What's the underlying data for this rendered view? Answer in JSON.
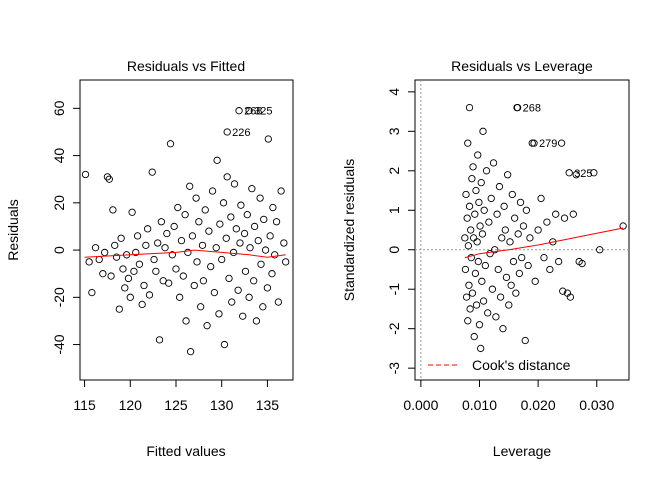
{
  "chart_data": [
    {
      "type": "scatter",
      "title": "Residuals vs Fitted",
      "xlabel": "Fitted values",
      "ylabel": "Residuals",
      "xlim": [
        114.5,
        137.8
      ],
      "ylim": [
        -55,
        72
      ],
      "xticks": [
        115,
        120,
        125,
        130,
        135
      ],
      "yticks": [
        -40,
        -20,
        0,
        20,
        40,
        60
      ],
      "annotations": [
        {
          "label": "268",
          "x": 131.9,
          "y": 59
        },
        {
          "label": "325",
          "x": 133.0,
          "y": 59
        },
        {
          "label": "226",
          "x": 130.6,
          "y": 50
        }
      ],
      "series": [
        {
          "points": [
            [
              115.1,
              32
            ],
            [
              115.5,
              -5
            ],
            [
              115.8,
              -18
            ],
            [
              116.2,
              1
            ],
            [
              116.6,
              -4
            ],
            [
              117.0,
              -10
            ],
            [
              117.2,
              -1
            ],
            [
              117.5,
              31
            ],
            [
              117.7,
              30
            ],
            [
              117.9,
              -11
            ],
            [
              118.1,
              17
            ],
            [
              118.3,
              2
            ],
            [
              118.5,
              -3
            ],
            [
              118.8,
              -25
            ],
            [
              119.0,
              5
            ],
            [
              119.2,
              -8
            ],
            [
              119.4,
              -16
            ],
            [
              119.6,
              -2
            ],
            [
              119.8,
              -12
            ],
            [
              120.0,
              -20
            ],
            [
              120.2,
              16
            ],
            [
              120.4,
              -9
            ],
            [
              120.6,
              -1
            ],
            [
              120.8,
              6
            ],
            [
              121.0,
              -6
            ],
            [
              121.3,
              -23
            ],
            [
              121.5,
              -15
            ],
            [
              121.7,
              2
            ],
            [
              121.9,
              9
            ],
            [
              122.1,
              -19
            ],
            [
              122.4,
              33
            ],
            [
              122.6,
              -4
            ],
            [
              122.8,
              -9
            ],
            [
              123.0,
              3
            ],
            [
              123.2,
              -38
            ],
            [
              123.4,
              12
            ],
            [
              123.6,
              -13
            ],
            [
              123.8,
              1
            ],
            [
              124.0,
              7
            ],
            [
              124.2,
              -14
            ],
            [
              124.4,
              45
            ],
            [
              124.6,
              -2
            ],
            [
              124.8,
              10
            ],
            [
              125.0,
              -8
            ],
            [
              125.2,
              18
            ],
            [
              125.4,
              -20
            ],
            [
              125.6,
              4
            ],
            [
              125.8,
              -11
            ],
            [
              126.0,
              15
            ],
            [
              126.1,
              -30
            ],
            [
              126.3,
              -1
            ],
            [
              126.5,
              27
            ],
            [
              126.6,
              -43
            ],
            [
              126.8,
              6
            ],
            [
              127.0,
              -15
            ],
            [
              127.2,
              22
            ],
            [
              127.3,
              -5
            ],
            [
              127.5,
              12
            ],
            [
              127.7,
              -24
            ],
            [
              127.9,
              2
            ],
            [
              128.0,
              -13
            ],
            [
              128.2,
              17
            ],
            [
              128.4,
              -32
            ],
            [
              128.6,
              8
            ],
            [
              128.8,
              -7
            ],
            [
              129.0,
              25
            ],
            [
              129.2,
              -18
            ],
            [
              129.4,
              1
            ],
            [
              129.5,
              38
            ],
            [
              129.7,
              -27
            ],
            [
              129.8,
              11
            ],
            [
              130.0,
              -4
            ],
            [
              130.2,
              20
            ],
            [
              130.3,
              -40
            ],
            [
              130.5,
              5
            ],
            [
              130.6,
              31
            ],
            [
              130.8,
              -12
            ],
            [
              131.0,
              14
            ],
            [
              131.1,
              -22
            ],
            [
              131.3,
              -1
            ],
            [
              131.4,
              28
            ],
            [
              131.6,
              9
            ],
            [
              131.8,
              -17
            ],
            [
              132.0,
              3
            ],
            [
              132.1,
              19
            ],
            [
              132.3,
              -28
            ],
            [
              132.5,
              7
            ],
            [
              132.6,
              -9
            ],
            [
              132.8,
              15
            ],
            [
              133.0,
              -20
            ],
            [
              133.1,
              1
            ],
            [
              133.3,
              26
            ],
            [
              133.5,
              -13
            ],
            [
              133.6,
              10
            ],
            [
              133.8,
              -30
            ],
            [
              134.0,
              4
            ],
            [
              134.2,
              22
            ],
            [
              134.3,
              -6
            ],
            [
              134.5,
              -24
            ],
            [
              134.6,
              13
            ],
            [
              134.8,
              0
            ],
            [
              135.0,
              -16
            ],
            [
              135.1,
              47
            ],
            [
              135.3,
              6
            ],
            [
              135.5,
              -10
            ],
            [
              135.6,
              18
            ],
            [
              135.8,
              -2
            ],
            [
              136.0,
              12
            ],
            [
              136.2,
              -22
            ],
            [
              136.5,
              25
            ],
            [
              136.8,
              3
            ],
            [
              137.0,
              -5
            ]
          ]
        }
      ],
      "smoother": [
        [
          115,
          -3
        ],
        [
          120,
          -2
        ],
        [
          125,
          -1
        ],
        [
          127,
          0
        ],
        [
          130,
          -1
        ],
        [
          133,
          -2
        ],
        [
          135,
          -3
        ],
        [
          137,
          -2
        ]
      ]
    },
    {
      "type": "scatter",
      "title": "Residuals vs Leverage",
      "xlabel": "Leverage",
      "ylabel": "Standardized residuals",
      "xlim": [
        -0.001,
        0.0355
      ],
      "ylim": [
        -3.3,
        4.3
      ],
      "xticks": [
        "0.000",
        "0.010",
        "0.020",
        "0.030"
      ],
      "yticks": [
        -3,
        -2,
        -1,
        0,
        1,
        2,
        3,
        4
      ],
      "annotations": [
        {
          "label": "268",
          "x": 0.0165,
          "y": 3.6
        },
        {
          "label": "279",
          "x": 0.0193,
          "y": 2.7
        },
        {
          "label": "325",
          "x": 0.0253,
          "y": 1.95
        }
      ],
      "legend": {
        "label": "Cook's distance",
        "position": "bottom-left"
      },
      "series": [
        {
          "points": [
            [
              0.0075,
              0.3
            ],
            [
              0.0076,
              -0.5
            ],
            [
              0.0077,
              1.4
            ],
            [
              0.0078,
              -1.2
            ],
            [
              0.0079,
              0.8
            ],
            [
              0.008,
              -1.8
            ],
            [
              0.008,
              2.7
            ],
            [
              0.0081,
              0.1
            ],
            [
              0.0082,
              -0.9
            ],
            [
              0.0083,
              1.1
            ],
            [
              0.0083,
              3.6
            ],
            [
              0.0084,
              -1.5
            ],
            [
              0.0085,
              0.5
            ],
            [
              0.0086,
              -0.2
            ],
            [
              0.0087,
              1.8
            ],
            [
              0.0088,
              -1.1
            ],
            [
              0.0089,
              2.1
            ],
            [
              0.009,
              0.3
            ],
            [
              0.0091,
              -2.2
            ],
            [
              0.0092,
              0.9
            ],
            [
              0.0093,
              -0.6
            ],
            [
              0.0094,
              1.5
            ],
            [
              0.0095,
              -1.4
            ],
            [
              0.0096,
              0.2
            ],
            [
              0.0097,
              2.4
            ],
            [
              0.0098,
              -0.3
            ],
            [
              0.0099,
              1.2
            ],
            [
              0.01,
              -1.9
            ],
            [
              0.0101,
              0.6
            ],
            [
              0.0102,
              -2.5
            ],
            [
              0.0103,
              1.7
            ],
            [
              0.0104,
              -0.8
            ],
            [
              0.0105,
              0.4
            ],
            [
              0.0106,
              3.0
            ],
            [
              0.0107,
              -1.3
            ],
            [
              0.0108,
              1.0
            ],
            [
              0.011,
              -0.4
            ],
            [
              0.0112,
              2.0
            ],
            [
              0.0114,
              -1.6
            ],
            [
              0.0116,
              0.7
            ],
            [
              0.0118,
              -0.1
            ],
            [
              0.012,
              1.3
            ],
            [
              0.0122,
              -1.0
            ],
            [
              0.0124,
              2.2
            ],
            [
              0.0126,
              0.0
            ],
            [
              0.0128,
              -1.7
            ],
            [
              0.013,
              0.9
            ],
            [
              0.0132,
              -0.5
            ],
            [
              0.0134,
              1.6
            ],
            [
              0.0136,
              -1.2
            ],
            [
              0.0138,
              0.3
            ],
            [
              0.014,
              -2.0
            ],
            [
              0.0142,
              1.1
            ],
            [
              0.0144,
              0.5
            ],
            [
              0.0146,
              -0.7
            ],
            [
              0.0148,
              1.9
            ],
            [
              0.015,
              -1.4
            ],
            [
              0.0152,
              0.2
            ],
            [
              0.0154,
              -0.9
            ],
            [
              0.0156,
              1.4
            ],
            [
              0.0158,
              -0.3
            ],
            [
              0.016,
              0.8
            ],
            [
              0.0162,
              -1.1
            ],
            [
              0.0164,
              3.6
            ],
            [
              0.0166,
              0.4
            ],
            [
              0.0168,
              -0.6
            ],
            [
              0.017,
              1.2
            ],
            [
              0.0172,
              -0.2
            ],
            [
              0.0175,
              0.6
            ],
            [
              0.0178,
              -2.3
            ],
            [
              0.018,
              1.0
            ],
            [
              0.0183,
              -0.4
            ],
            [
              0.0186,
              0.3
            ],
            [
              0.019,
              2.7
            ],
            [
              0.0195,
              -0.8
            ],
            [
              0.02,
              0.5
            ],
            [
              0.0205,
              1.3
            ],
            [
              0.021,
              -0.2
            ],
            [
              0.0215,
              0.7
            ],
            [
              0.022,
              -0.5
            ],
            [
              0.0225,
              0.2
            ],
            [
              0.023,
              0.9
            ],
            [
              0.0235,
              -0.3
            ],
            [
              0.024,
              2.7
            ],
            [
              0.0242,
              -1.05
            ],
            [
              0.0245,
              0.8
            ],
            [
              0.025,
              -1.1
            ],
            [
              0.0255,
              -1.2
            ],
            [
              0.026,
              0.9
            ],
            [
              0.0265,
              1.9
            ],
            [
              0.027,
              -0.3
            ],
            [
              0.0275,
              -0.35
            ],
            [
              0.0295,
              1.95
            ],
            [
              0.0305,
              0.0
            ],
            [
              0.0345,
              0.6
            ]
          ]
        }
      ],
      "smoother": [
        [
          0.0075,
          -0.2
        ],
        [
          0.01,
          -0.1
        ],
        [
          0.015,
          0.0
        ],
        [
          0.02,
          0.12
        ],
        [
          0.025,
          0.27
        ],
        [
          0.03,
          0.42
        ],
        [
          0.0345,
          0.55
        ]
      ]
    }
  ]
}
